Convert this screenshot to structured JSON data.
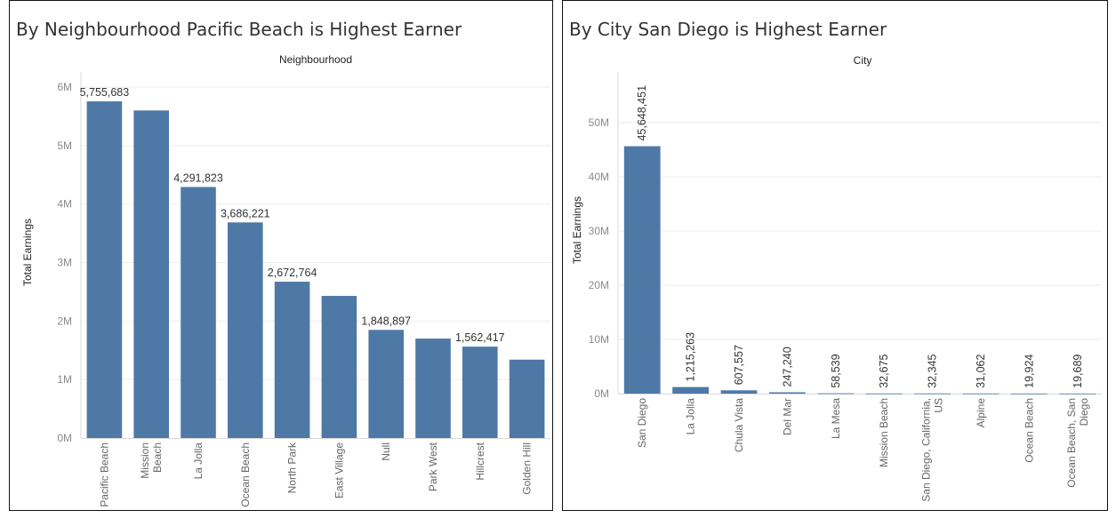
{
  "charts": {
    "left": {
      "title": "By Neighbourhood Pacific Beach is Highest Earner",
      "header": "Neighbourhood",
      "ylabel": "Total Earnings",
      "yticks": [
        "0M",
        "1M",
        "2M",
        "3M",
        "4M",
        "5M",
        "6M"
      ]
    },
    "right": {
      "title": "By City San Diego is Highest Earner",
      "header": "City",
      "ylabel": "Total Earnings",
      "yticks": [
        "0M",
        "10M",
        "20M",
        "30M",
        "40M",
        "50M"
      ]
    }
  },
  "chart_data": [
    {
      "type": "bar",
      "title": "By Neighbourhood Pacific Beach is Highest Earner",
      "xlabel": "Neighbourhood",
      "ylabel": "Total Earnings",
      "ylim": [
        0,
        6000000
      ],
      "grid": true,
      "color": "#4e79a7",
      "categories": [
        "Pacific Beach",
        "Mission Beach",
        "La Jolla",
        "Ocean Beach",
        "North Park",
        "East Village",
        "Null",
        "Park West",
        "Hillcrest",
        "Golden Hill"
      ],
      "category_lines": [
        [
          "Pacific Beach"
        ],
        [
          "Mission",
          "Beach"
        ],
        [
          "La Jolla"
        ],
        [
          "Ocean Beach"
        ],
        [
          "North Park"
        ],
        [
          "East Village"
        ],
        [
          "Null"
        ],
        [
          "Park West"
        ],
        [
          "Hillcrest"
        ],
        [
          "Golden Hill"
        ]
      ],
      "values": [
        5755683,
        5600000,
        4291823,
        3686221,
        2672764,
        2430000,
        1848897,
        1700000,
        1562417,
        1340000
      ],
      "data_labels": [
        "5,755,683",
        "",
        "4,291,823",
        "3,686,221",
        "2,672,764",
        "",
        "1,848,897",
        "",
        "1,562,417",
        ""
      ]
    },
    {
      "type": "bar",
      "title": "By City San Diego is Highest Earner",
      "xlabel": "City",
      "ylabel": "Total Earnings",
      "ylim": [
        0,
        50000000
      ],
      "grid": true,
      "color": "#4e79a7",
      "categories": [
        "San Diego",
        "La Jolla",
        "Chula Vista",
        "Del Mar",
        "La Mesa",
        "Mission Beach",
        "San Diego, California, US",
        "Alpine",
        "Ocean Beach",
        "Ocean Beach, San Diego"
      ],
      "category_lines": [
        [
          "San Diego"
        ],
        [
          "La Jolla"
        ],
        [
          "Chula Vista"
        ],
        [
          "Del Mar"
        ],
        [
          "La Mesa"
        ],
        [
          "Mission Beach"
        ],
        [
          "San Diego, California,",
          "US"
        ],
        [
          "Alpine"
        ],
        [
          "Ocean Beach"
        ],
        [
          "Ocean Beach, San",
          "Diego"
        ]
      ],
      "values": [
        45648451,
        1215263,
        607557,
        247240,
        58539,
        32675,
        32345,
        31062,
        19924,
        19689
      ],
      "data_labels": [
        "45,648,451",
        "1,215,263",
        "607,557",
        "247,240",
        "58,539",
        "32,675",
        "32,345",
        "31,062",
        "19,924",
        "19,689"
      ]
    }
  ]
}
